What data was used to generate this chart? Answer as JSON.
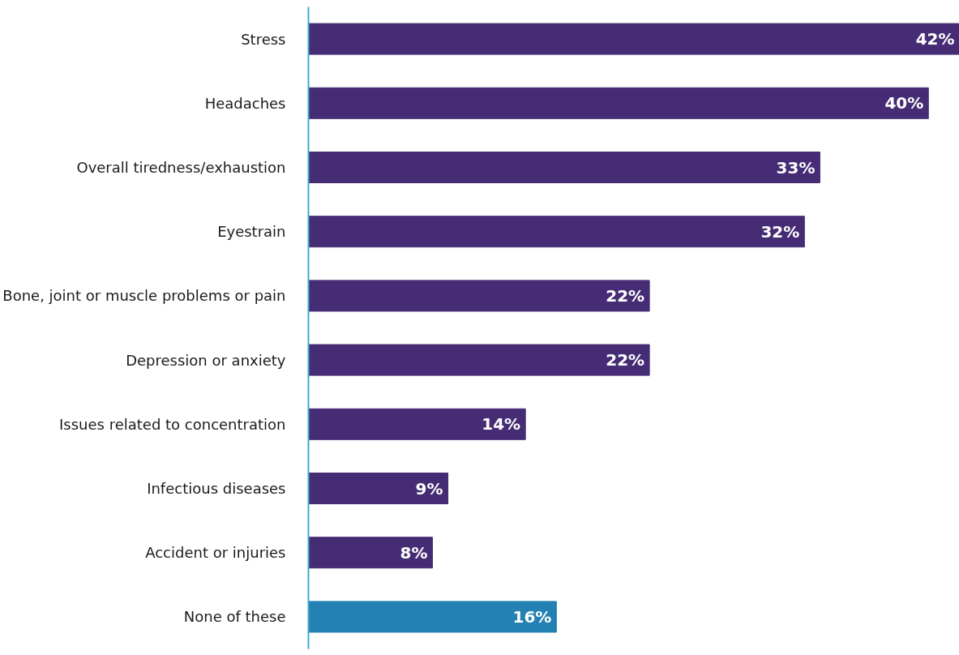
{
  "chart_data": {
    "type": "bar",
    "orientation": "horizontal",
    "categories": [
      "Stress",
      "Headaches",
      "Overall tiredness/exhaustion",
      "Eyestrain",
      "Bone, joint or muscle problems or pain",
      "Depression or anxiety",
      "Issues related to concentration",
      "Infectious diseases",
      "Accident or injuries",
      "None of these"
    ],
    "values": [
      42,
      40,
      33,
      32,
      22,
      22,
      14,
      9,
      8,
      16
    ],
    "colors": [
      "#452c74",
      "#452c74",
      "#452c74",
      "#452c74",
      "#452c74",
      "#452c74",
      "#452c74",
      "#452c74",
      "#452c74",
      "#2381b3"
    ],
    "value_labels": [
      "42%",
      "40%",
      "33%",
      "32%",
      "22%",
      "22%",
      "14%",
      "9%",
      "8%",
      "16%"
    ]
  }
}
